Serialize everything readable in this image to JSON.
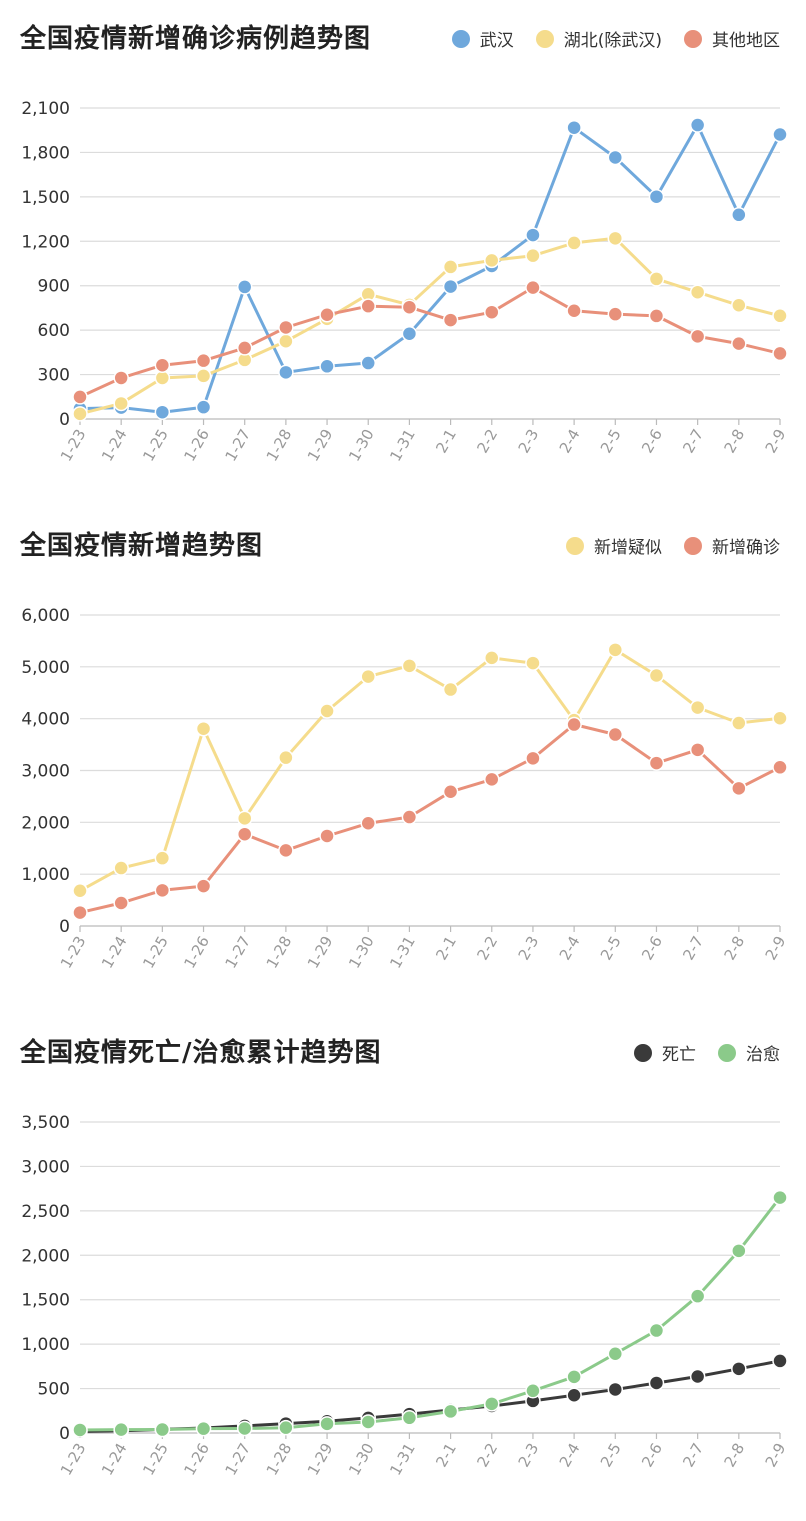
{
  "chart_data": [
    {
      "type": "line",
      "title": "全国疫情新增确诊病例趋势图",
      "categories": [
        "1-23",
        "1-24",
        "1-25",
        "1-26",
        "1-27",
        "1-28",
        "1-29",
        "1-30",
        "1-31",
        "2-1",
        "2-2",
        "2-3",
        "2-4",
        "2-5",
        "2-6",
        "2-7",
        "2-8",
        "2-9"
      ],
      "yticks": [
        0,
        300,
        600,
        900,
        1200,
        1500,
        1800,
        2100
      ],
      "ytick_labels": [
        "0",
        "300",
        "600",
        "900",
        "1,200",
        "1,500",
        "1,800",
        "2,100"
      ],
      "ylim": [
        0,
        2100
      ],
      "grid": true,
      "legend_position": "top-right",
      "series": [
        {
          "name": "武汉",
          "color": "#6fa8dc",
          "values": [
            70,
            77,
            46,
            80,
            892,
            315,
            356,
            378,
            576,
            894,
            1033,
            1242,
            1967,
            1766,
            1501,
            1985,
            1379,
            1921
          ]
        },
        {
          "name": "湖北(除武汉)",
          "color": "#f5dc8c",
          "values": [
            35,
            105,
            277,
            291,
            399,
            525,
            676,
            842,
            771,
            1027,
            1071,
            1103,
            1189,
            1220,
            946,
            856,
            768,
            697
          ]
        },
        {
          "name": "其他地区",
          "color": "#e8907a",
          "values": [
            149,
            277,
            363,
            394,
            480,
            618,
            704,
            762,
            755,
            668,
            721,
            887,
            731,
            708,
            696,
            558,
            509,
            443
          ]
        }
      ]
    },
    {
      "type": "line",
      "title": "全国疫情新增趋势图",
      "categories": [
        "1-23",
        "1-24",
        "1-25",
        "1-26",
        "1-27",
        "1-28",
        "1-29",
        "1-30",
        "1-31",
        "2-1",
        "2-2",
        "2-3",
        "2-4",
        "2-5",
        "2-6",
        "2-7",
        "2-8",
        "2-9"
      ],
      "yticks": [
        0,
        1000,
        2000,
        3000,
        4000,
        5000,
        6000
      ],
      "ytick_labels": [
        "0",
        "1,000",
        "2,000",
        "3,000",
        "4,000",
        "5,000",
        "6,000"
      ],
      "ylim": [
        0,
        6000
      ],
      "grid": true,
      "legend_position": "top-right",
      "series": [
        {
          "name": "新增疑似",
          "color": "#f5dc8c",
          "values": [
            680,
            1118,
            1309,
            3806,
            2077,
            3248,
            4148,
            4812,
            5019,
            4562,
            5173,
            5072,
            3971,
            5328,
            4833,
            4214,
            3916,
            4008
          ]
        },
        {
          "name": "新增确诊",
          "color": "#e8907a",
          "values": [
            259,
            444,
            688,
            769,
            1771,
            1459,
            1737,
            1982,
            2102,
            2590,
            2829,
            3235,
            3887,
            3694,
            3143,
            3399,
            2656,
            3062
          ]
        }
      ]
    },
    {
      "type": "line",
      "title": "全国疫情死亡/治愈累计趋势图",
      "categories": [
        "1-23",
        "1-24",
        "1-25",
        "1-26",
        "1-27",
        "1-28",
        "1-29",
        "1-30",
        "1-31",
        "2-1",
        "2-2",
        "2-3",
        "2-4",
        "2-5",
        "2-6",
        "2-7",
        "2-8",
        "2-9"
      ],
      "yticks": [
        0,
        500,
        1000,
        1500,
        2000,
        2500,
        3000,
        3500
      ],
      "ytick_labels": [
        "0",
        "500",
        "1,000",
        "1,500",
        "2,000",
        "2,500",
        "3,000",
        "3,500"
      ],
      "ylim": [
        0,
        3500
      ],
      "grid": true,
      "legend_position": "top-right",
      "series": [
        {
          "name": "死亡",
          "color": "#3a3a3a",
          "values": [
            17,
            25,
            41,
            56,
            80,
            106,
            132,
            170,
            213,
            259,
            304,
            361,
            425,
            490,
            563,
            636,
            722,
            811
          ]
        },
        {
          "name": "治愈",
          "color": "#8bca8a",
          "values": [
            34,
            38,
            39,
            49,
            51,
            60,
            103,
            124,
            171,
            243,
            328,
            475,
            632,
            892,
            1153,
            1540,
            2050,
            2649
          ]
        }
      ]
    }
  ]
}
